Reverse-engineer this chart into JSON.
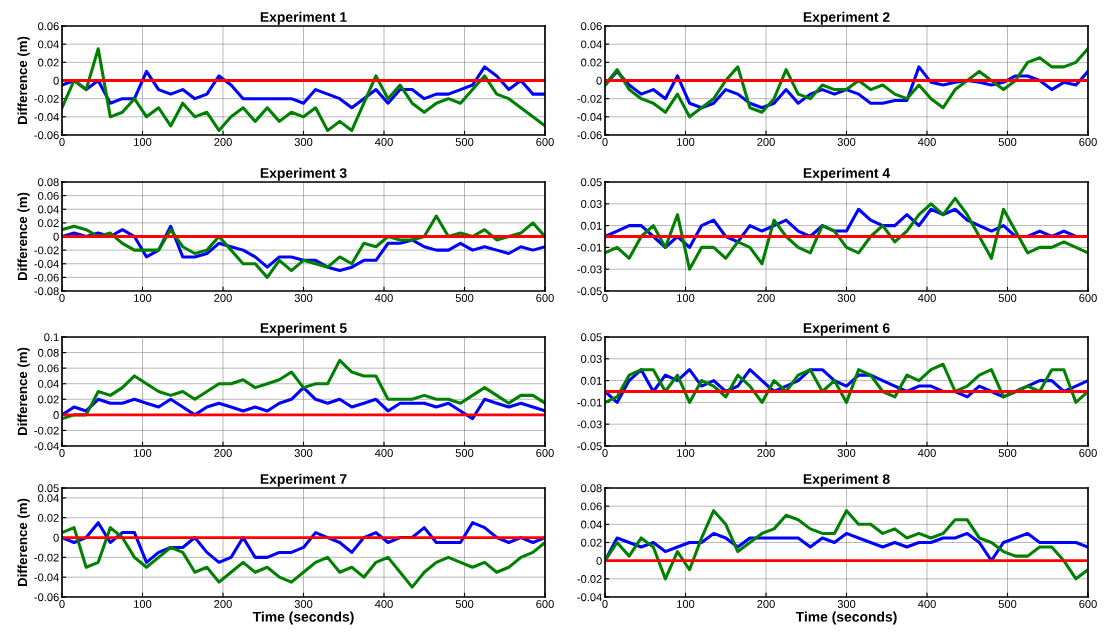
{
  "chart_data": [
    {
      "type": "line",
      "title": "Experiment 1",
      "ylabel": "Difference (m)",
      "x": [
        0,
        15,
        30,
        45,
        60,
        75,
        90,
        105,
        120,
        135,
        150,
        165,
        180,
        195,
        210,
        225,
        240,
        255,
        270,
        285,
        300,
        315,
        330,
        345,
        360,
        375,
        390,
        405,
        420,
        435,
        450,
        465,
        480,
        495,
        510,
        525,
        540,
        555,
        570,
        585,
        600
      ],
      "xlim": [
        0,
        600
      ],
      "xticks": [
        0,
        100,
        200,
        300,
        400,
        500,
        600
      ],
      "ylim": [
        -0.06,
        0.06
      ],
      "yticks": [
        -0.06,
        -0.04,
        -0.02,
        0,
        0.02,
        0.04,
        0.06
      ],
      "grid": true,
      "series": [
        {
          "color": "#0000ff",
          "values": [
            -0.005,
            0.0,
            -0.01,
            0.0,
            -0.025,
            -0.02,
            -0.02,
            0.01,
            -0.01,
            -0.015,
            -0.01,
            -0.02,
            -0.015,
            0.005,
            -0.005,
            -0.02,
            -0.02,
            -0.02,
            -0.02,
            -0.02,
            -0.025,
            -0.01,
            -0.015,
            -0.02,
            -0.03,
            -0.02,
            -0.01,
            -0.025,
            -0.01,
            -0.01,
            -0.02,
            -0.015,
            -0.015,
            -0.01,
            -0.005,
            0.015,
            0.005,
            -0.01,
            0.0,
            -0.015,
            -0.015
          ]
        },
        {
          "color": "#008000",
          "values": [
            -0.03,
            0.0,
            -0.01,
            0.035,
            -0.04,
            -0.035,
            -0.02,
            -0.04,
            -0.03,
            -0.05,
            -0.025,
            -0.04,
            -0.035,
            -0.055,
            -0.04,
            -0.03,
            -0.045,
            -0.03,
            -0.045,
            -0.035,
            -0.04,
            -0.03,
            -0.055,
            -0.045,
            -0.055,
            -0.025,
            0.005,
            -0.02,
            -0.005,
            -0.025,
            -0.035,
            -0.025,
            -0.02,
            -0.025,
            -0.01,
            0.005,
            -0.015,
            -0.02,
            -0.03,
            -0.04,
            -0.05
          ]
        }
      ],
      "ref_lines": [
        {
          "axis": "y",
          "value": 0,
          "color": "#ff0000"
        }
      ]
    },
    {
      "type": "line",
      "title": "Experiment 2",
      "x": [
        0,
        15,
        30,
        45,
        60,
        75,
        90,
        105,
        120,
        135,
        150,
        165,
        180,
        195,
        210,
        225,
        240,
        255,
        270,
        285,
        300,
        315,
        330,
        345,
        360,
        375,
        390,
        405,
        420,
        435,
        450,
        465,
        480,
        495,
        510,
        525,
        540,
        555,
        570,
        585,
        600
      ],
      "xlim": [
        0,
        600
      ],
      "xticks": [
        0,
        100,
        200,
        300,
        400,
        500,
        600
      ],
      "ylim": [
        -0.06,
        0.06
      ],
      "yticks": [
        -0.06,
        -0.04,
        -0.02,
        0,
        0.02,
        0.04,
        0.06
      ],
      "grid": true,
      "series": [
        {
          "color": "#0000ff",
          "values": [
            -0.005,
            0.01,
            -0.005,
            -0.015,
            -0.01,
            -0.02,
            0.005,
            -0.025,
            -0.03,
            -0.025,
            -0.01,
            -0.015,
            -0.025,
            -0.03,
            -0.025,
            -0.01,
            -0.025,
            -0.015,
            -0.01,
            -0.015,
            -0.01,
            -0.015,
            -0.025,
            -0.025,
            -0.022,
            -0.022,
            0.015,
            -0.002,
            -0.005,
            -0.002,
            0.0,
            -0.002,
            -0.005,
            -0.002,
            0.005,
            0.005,
            0.0,
            -0.01,
            -0.002,
            -0.005,
            0.01
          ]
        },
        {
          "color": "#008000",
          "values": [
            -0.005,
            0.012,
            -0.01,
            -0.02,
            -0.025,
            -0.035,
            -0.015,
            -0.04,
            -0.03,
            -0.02,
            0.0,
            0.015,
            -0.03,
            -0.035,
            -0.02,
            0.012,
            -0.015,
            -0.02,
            -0.005,
            -0.01,
            -0.01,
            0.0,
            -0.01,
            -0.005,
            -0.015,
            -0.02,
            -0.005,
            -0.02,
            -0.03,
            -0.01,
            0.0,
            0.01,
            0.0,
            -0.01,
            0.0,
            0.02,
            0.025,
            0.015,
            0.015,
            0.02,
            0.035
          ]
        }
      ],
      "ref_lines": [
        {
          "axis": "y",
          "value": 0,
          "color": "#ff0000"
        }
      ]
    },
    {
      "type": "line",
      "title": "Experiment 3",
      "ylabel": "Difference (m)",
      "x": [
        0,
        15,
        30,
        45,
        60,
        75,
        90,
        105,
        120,
        135,
        150,
        165,
        180,
        195,
        210,
        225,
        240,
        255,
        270,
        285,
        300,
        315,
        330,
        345,
        360,
        375,
        390,
        405,
        420,
        435,
        450,
        465,
        480,
        495,
        510,
        525,
        540,
        555,
        570,
        585,
        600
      ],
      "xlim": [
        0,
        600
      ],
      "xticks": [
        0,
        100,
        200,
        300,
        400,
        500,
        600
      ],
      "ylim": [
        -0.08,
        0.08
      ],
      "yticks": [
        -0.08,
        -0.06,
        -0.04,
        -0.02,
        0,
        0.02,
        0.04,
        0.06,
        0.08
      ],
      "grid": true,
      "series": [
        {
          "color": "#0000ff",
          "values": [
            0.0,
            0.005,
            0.0,
            0.005,
            0.0,
            0.01,
            0.0,
            -0.03,
            -0.02,
            0.015,
            -0.03,
            -0.03,
            -0.025,
            -0.01,
            -0.015,
            -0.02,
            -0.03,
            -0.045,
            -0.03,
            -0.03,
            -0.035,
            -0.035,
            -0.045,
            -0.05,
            -0.045,
            -0.035,
            -0.035,
            -0.01,
            -0.01,
            -0.005,
            -0.015,
            -0.02,
            -0.02,
            -0.01,
            -0.02,
            -0.015,
            -0.02,
            -0.025,
            -0.015,
            -0.02,
            -0.015
          ]
        },
        {
          "color": "#008000",
          "values": [
            0.01,
            0.015,
            0.01,
            0.0,
            0.005,
            -0.01,
            -0.02,
            -0.02,
            -0.02,
            0.01,
            -0.015,
            -0.025,
            -0.02,
            0.0,
            -0.02,
            -0.04,
            -0.04,
            -0.06,
            -0.035,
            -0.05,
            -0.035,
            -0.04,
            -0.045,
            -0.03,
            -0.04,
            -0.01,
            -0.015,
            0.0,
            -0.005,
            -0.005,
            0.0,
            0.03,
            0.0,
            0.005,
            0.0,
            0.01,
            -0.005,
            0.0,
            0.005,
            0.02,
            0.0
          ]
        }
      ],
      "ref_lines": [
        {
          "axis": "y",
          "value": 0,
          "color": "#ff0000"
        }
      ]
    },
    {
      "type": "line",
      "title": "Experiment 4",
      "x": [
        0,
        15,
        30,
        45,
        60,
        75,
        90,
        105,
        120,
        135,
        150,
        165,
        180,
        195,
        210,
        225,
        240,
        255,
        270,
        285,
        300,
        315,
        330,
        345,
        360,
        375,
        390,
        405,
        420,
        435,
        450,
        465,
        480,
        495,
        510,
        525,
        540,
        555,
        570,
        585,
        600
      ],
      "xlim": [
        0,
        600
      ],
      "xticks": [
        0,
        100,
        200,
        300,
        400,
        500,
        600
      ],
      "ylim": [
        -0.05,
        0.05
      ],
      "yticks": [
        -0.05,
        -0.03,
        -0.01,
        0.01,
        0.03,
        0.05
      ],
      "grid": true,
      "series": [
        {
          "color": "#0000ff",
          "values": [
            0.0,
            0.005,
            0.01,
            0.01,
            0.0,
            -0.01,
            0.0,
            -0.01,
            0.01,
            0.015,
            0.0,
            -0.005,
            0.01,
            0.005,
            0.01,
            0.015,
            0.005,
            0.0,
            0.01,
            0.005,
            0.005,
            0.025,
            0.015,
            0.01,
            0.01,
            0.02,
            0.01,
            0.025,
            0.02,
            0.025,
            0.015,
            0.01,
            0.005,
            0.01,
            0.0,
            0.0,
            0.005,
            0.0,
            0.005,
            0.0,
            0.0
          ]
        },
        {
          "color": "#008000",
          "values": [
            -0.015,
            -0.01,
            -0.02,
            0.0,
            0.01,
            -0.01,
            0.02,
            -0.03,
            -0.01,
            -0.01,
            -0.02,
            -0.005,
            -0.01,
            -0.025,
            0.015,
            0.0,
            -0.01,
            -0.015,
            0.01,
            0.005,
            -0.01,
            -0.015,
            0.0,
            0.01,
            -0.005,
            0.005,
            0.02,
            0.03,
            0.02,
            0.035,
            0.02,
            0.0,
            -0.02,
            0.025,
            0.005,
            -0.015,
            -0.01,
            -0.01,
            -0.005,
            -0.01,
            -0.015
          ]
        }
      ],
      "ref_lines": [
        {
          "axis": "y",
          "value": 0,
          "color": "#ff0000"
        }
      ]
    },
    {
      "type": "line",
      "title": "Experiment 5",
      "ylabel": "Difference (m)",
      "x": [
        0,
        15,
        30,
        45,
        60,
        75,
        90,
        105,
        120,
        135,
        150,
        165,
        180,
        195,
        210,
        225,
        240,
        255,
        270,
        285,
        300,
        315,
        330,
        345,
        360,
        375,
        390,
        405,
        420,
        435,
        450,
        465,
        480,
        495,
        510,
        525,
        540,
        555,
        570,
        585,
        600
      ],
      "xlim": [
        0,
        600
      ],
      "xticks": [
        0,
        100,
        200,
        300,
        400,
        500,
        600
      ],
      "ylim": [
        -0.04,
        0.1
      ],
      "yticks": [
        -0.04,
        -0.02,
        0,
        0.02,
        0.04,
        0.06,
        0.08,
        0.1
      ],
      "grid": true,
      "series": [
        {
          "color": "#0000ff",
          "values": [
            0.0,
            0.01,
            0.005,
            0.02,
            0.015,
            0.015,
            0.02,
            0.015,
            0.01,
            0.02,
            0.01,
            0.0,
            0.01,
            0.015,
            0.01,
            0.005,
            0.01,
            0.005,
            0.015,
            0.02,
            0.035,
            0.02,
            0.015,
            0.02,
            0.01,
            0.015,
            0.02,
            0.005,
            0.015,
            0.015,
            0.015,
            0.01,
            0.015,
            0.005,
            -0.005,
            0.02,
            0.015,
            0.01,
            0.015,
            0.01,
            0.005
          ]
        },
        {
          "color": "#008000",
          "values": [
            -0.005,
            0.0,
            0.0,
            0.03,
            0.025,
            0.035,
            0.05,
            0.04,
            0.03,
            0.025,
            0.03,
            0.02,
            0.03,
            0.04,
            0.04,
            0.045,
            0.035,
            0.04,
            0.045,
            0.055,
            0.035,
            0.04,
            0.04,
            0.07,
            0.055,
            0.05,
            0.05,
            0.02,
            0.02,
            0.02,
            0.025,
            0.02,
            0.02,
            0.015,
            0.025,
            0.035,
            0.025,
            0.015,
            0.025,
            0.025,
            0.015
          ]
        }
      ],
      "ref_lines": [
        {
          "axis": "y",
          "value": 0,
          "color": "#ff0000"
        }
      ]
    },
    {
      "type": "line",
      "title": "Experiment 6",
      "x": [
        0,
        15,
        30,
        45,
        60,
        75,
        90,
        105,
        120,
        135,
        150,
        165,
        180,
        195,
        210,
        225,
        240,
        255,
        270,
        285,
        300,
        315,
        330,
        345,
        360,
        375,
        390,
        405,
        420,
        435,
        450,
        465,
        480,
        495,
        510,
        525,
        540,
        555,
        570,
        585,
        600
      ],
      "xlim": [
        0,
        600
      ],
      "xticks": [
        0,
        100,
        200,
        300,
        400,
        500,
        600
      ],
      "ylim": [
        -0.05,
        0.05
      ],
      "yticks": [
        -0.05,
        -0.03,
        -0.01,
        0.01,
        0.03,
        0.05
      ],
      "grid": true,
      "series": [
        {
          "color": "#0000ff",
          "values": [
            0.0,
            -0.01,
            0.01,
            0.02,
            0.0,
            0.015,
            0.01,
            0.02,
            0.005,
            0.01,
            0.0,
            0.005,
            0.02,
            0.01,
            0.0,
            0.005,
            0.01,
            0.02,
            0.02,
            0.01,
            0.005,
            0.015,
            0.015,
            0.01,
            0.005,
            0.0,
            0.005,
            0.005,
            0.0,
            0.0,
            -0.005,
            0.005,
            0.0,
            -0.005,
            0.0,
            0.005,
            0.01,
            0.01,
            0.0,
            0.005,
            0.01
          ]
        },
        {
          "color": "#008000",
          "values": [
            -0.01,
            -0.005,
            0.015,
            0.02,
            0.02,
            0.0,
            0.015,
            -0.01,
            0.01,
            0.005,
            -0.005,
            0.015,
            0.005,
            -0.01,
            0.01,
            0.0,
            0.015,
            0.02,
            0.0,
            0.01,
            -0.01,
            0.02,
            0.015,
            0.0,
            -0.005,
            0.015,
            0.01,
            0.02,
            0.025,
            0.0,
            0.005,
            0.015,
            0.02,
            -0.005,
            0.0,
            0.005,
            0.0,
            0.02,
            0.02,
            -0.01,
            0.0
          ]
        }
      ],
      "ref_lines": [
        {
          "axis": "y",
          "value": 0,
          "color": "#ff0000"
        }
      ]
    },
    {
      "type": "line",
      "title": "Experiment 7",
      "ylabel": "Difference (m)",
      "xlabel": "Time (seconds)",
      "x": [
        0,
        15,
        30,
        45,
        60,
        75,
        90,
        105,
        120,
        135,
        150,
        165,
        180,
        195,
        210,
        225,
        240,
        255,
        270,
        285,
        300,
        315,
        330,
        345,
        360,
        375,
        390,
        405,
        420,
        435,
        450,
        465,
        480,
        495,
        510,
        525,
        540,
        555,
        570,
        585,
        600
      ],
      "xlim": [
        0,
        600
      ],
      "xticks": [
        0,
        100,
        200,
        300,
        400,
        500,
        600
      ],
      "ylim": [
        -0.06,
        0.05
      ],
      "yticks": [
        -0.06,
        -0.04,
        -0.02,
        0,
        0.02,
        0.04,
        0.05
      ],
      "grid": true,
      "series": [
        {
          "color": "#0000ff",
          "values": [
            0.0,
            -0.005,
            0.0,
            0.015,
            -0.005,
            0.005,
            0.005,
            -0.025,
            -0.015,
            -0.01,
            -0.01,
            0.0,
            -0.015,
            -0.025,
            -0.02,
            0.0,
            -0.02,
            -0.02,
            -0.015,
            -0.015,
            -0.01,
            0.005,
            0.0,
            -0.005,
            -0.015,
            0.0,
            0.005,
            -0.005,
            0.0,
            0.0,
            0.01,
            -0.005,
            -0.005,
            -0.005,
            0.015,
            0.01,
            0.0,
            -0.005,
            0.0,
            -0.005,
            0.0
          ]
        },
        {
          "color": "#008000",
          "values": [
            0.005,
            0.01,
            -0.03,
            -0.025,
            0.01,
            0.0,
            -0.02,
            -0.03,
            -0.02,
            -0.01,
            -0.015,
            -0.035,
            -0.03,
            -0.045,
            -0.035,
            -0.025,
            -0.035,
            -0.03,
            -0.04,
            -0.045,
            -0.035,
            -0.025,
            -0.02,
            -0.035,
            -0.03,
            -0.04,
            -0.025,
            -0.02,
            -0.035,
            -0.05,
            -0.035,
            -0.025,
            -0.02,
            -0.025,
            -0.03,
            -0.025,
            -0.035,
            -0.03,
            -0.02,
            -0.015,
            -0.005
          ]
        }
      ],
      "ref_lines": [
        {
          "axis": "y",
          "value": 0,
          "color": "#ff0000"
        }
      ]
    },
    {
      "type": "line",
      "title": "Experiment 8",
      "xlabel": "Time (seconds)",
      "x": [
        0,
        15,
        30,
        45,
        60,
        75,
        90,
        105,
        120,
        135,
        150,
        165,
        180,
        195,
        210,
        225,
        240,
        255,
        270,
        285,
        300,
        315,
        330,
        345,
        360,
        375,
        390,
        405,
        420,
        435,
        450,
        465,
        480,
        495,
        510,
        525,
        540,
        555,
        570,
        585,
        600
      ],
      "xlim": [
        0,
        600
      ],
      "xticks": [
        0,
        100,
        200,
        300,
        400,
        500,
        600
      ],
      "ylim": [
        -0.04,
        0.08
      ],
      "yticks": [
        -0.04,
        -0.02,
        0,
        0.02,
        0.04,
        0.06,
        0.08
      ],
      "grid": true,
      "series": [
        {
          "color": "#0000ff",
          "values": [
            0.0,
            0.025,
            0.02,
            0.015,
            0.02,
            0.01,
            0.015,
            0.02,
            0.02,
            0.03,
            0.025,
            0.015,
            0.025,
            0.025,
            0.025,
            0.025,
            0.025,
            0.015,
            0.025,
            0.02,
            0.03,
            0.025,
            0.02,
            0.015,
            0.02,
            0.015,
            0.02,
            0.02,
            0.025,
            0.025,
            0.03,
            0.02,
            0.0,
            0.02,
            0.025,
            0.03,
            0.02,
            0.02,
            0.02,
            0.02,
            0.015
          ]
        },
        {
          "color": "#008000",
          "values": [
            0.0,
            0.02,
            0.005,
            0.025,
            0.015,
            -0.02,
            0.01,
            -0.01,
            0.025,
            0.055,
            0.04,
            0.01,
            0.02,
            0.03,
            0.035,
            0.05,
            0.045,
            0.035,
            0.03,
            0.03,
            0.055,
            0.04,
            0.04,
            0.03,
            0.035,
            0.025,
            0.03,
            0.025,
            0.03,
            0.045,
            0.045,
            0.025,
            0.02,
            0.01,
            0.005,
            0.005,
            0.015,
            0.015,
            0.0,
            -0.02,
            -0.01
          ]
        }
      ],
      "ref_lines": [
        {
          "axis": "y",
          "value": 0,
          "color": "#ff0000"
        }
      ]
    }
  ]
}
